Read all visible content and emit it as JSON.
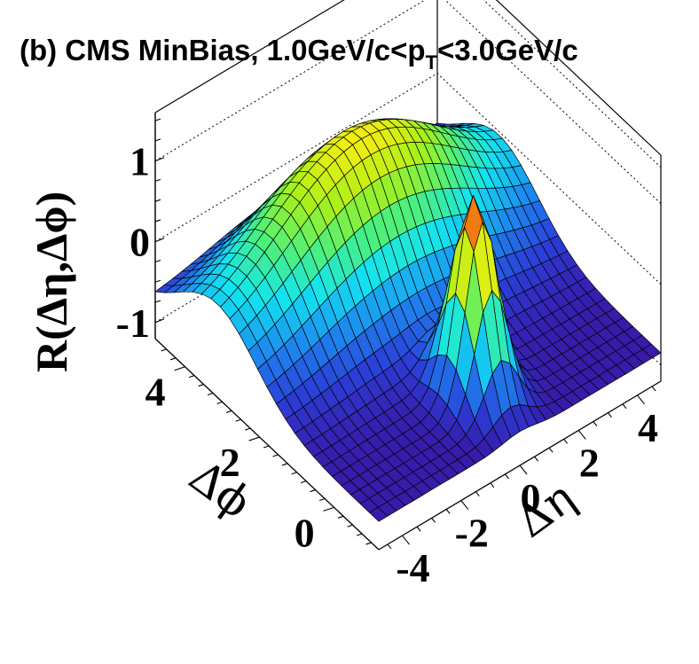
{
  "chart_data": {
    "type": "surface",
    "title": "(b) CMS MinBias, 1.0GeV/c<p",
    "title_sub": "T",
    "title_end": "<3.0GeV/c",
    "zlabel": "R(Δη,Δϕ)",
    "xlabel": "Δη",
    "ylabel": "Δϕ",
    "x_range": [
      -4.8,
      4.8
    ],
    "y_range": [
      -1.2,
      4.8
    ],
    "z_range": [
      -1.2,
      1.6
    ],
    "x_ticks": [
      {
        "value": -4,
        "label": "-4"
      },
      {
        "value": -2,
        "label": "-2"
      },
      {
        "value": 0,
        "label": "0"
      },
      {
        "value": 2,
        "label": "2"
      },
      {
        "value": 4,
        "label": "4"
      }
    ],
    "y_ticks": [
      {
        "value": 0,
        "label": "0"
      },
      {
        "value": 2,
        "label": "2"
      },
      {
        "value": 4,
        "label": "4"
      }
    ],
    "z_ticks": [
      {
        "value": -1,
        "label": "-1"
      },
      {
        "value": 0,
        "label": "0"
      },
      {
        "value": 1,
        "label": "1"
      }
    ],
    "grid": {
      "nx": 33,
      "ny": 25
    },
    "features": {
      "near_side_peak": {
        "x": 0,
        "y": 0,
        "height": 1.6,
        "width_eta": 0.55,
        "width_phi": 0.45
      },
      "away_side_ridge": {
        "y": 3.1416,
        "height": 1.0
      },
      "floor": -0.85
    },
    "colormap": [
      "#3a14a0",
      "#2b3fd8",
      "#1c8ef0",
      "#12e4f0",
      "#4ef07a",
      "#a8f01a",
      "#f0ee12",
      "#f08a10",
      "#f01f10"
    ],
    "z_color_range": [
      -0.9,
      1.6
    ]
  }
}
